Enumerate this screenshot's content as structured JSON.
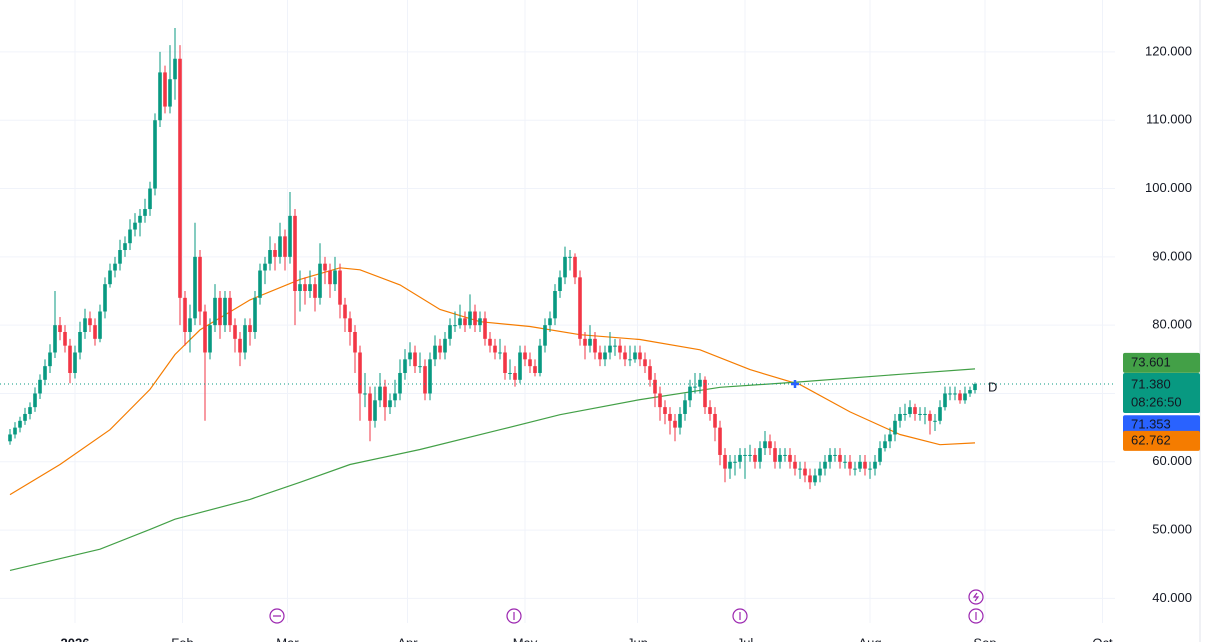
{
  "chart_data": {
    "type": "candlestick",
    "xlim": [
      -2,
      221
    ],
    "xticks": [
      {
        "value": 13,
        "label": "2026"
      },
      {
        "value": 34.5,
        "label": "Feb"
      },
      {
        "value": 55.5,
        "label": "Mar"
      },
      {
        "value": 79.5,
        "label": "Apr"
      },
      {
        "value": 103,
        "label": "May"
      },
      {
        "value": 125.5,
        "label": "Jun"
      },
      {
        "value": 147,
        "label": "Jul"
      },
      {
        "value": 172,
        "label": "Aug"
      },
      {
        "value": 195,
        "label": "Sep"
      },
      {
        "value": 218.5,
        "label": "Oct"
      }
    ],
    "ylim": [
      36.4,
      127.6
    ],
    "yticks": [
      {
        "value": 40,
        "label": "40.000"
      },
      {
        "value": 50,
        "label": "50.000"
      },
      {
        "value": 60,
        "label": "60.000"
      },
      {
        "value": 70,
        "label": "70.000"
      },
      {
        "value": 80,
        "label": "80.000"
      },
      {
        "value": 90,
        "label": "90.000"
      },
      {
        "value": 100,
        "label": "100.000"
      },
      {
        "value": 110,
        "label": "110.000"
      },
      {
        "value": 120,
        "label": "120.000"
      }
    ],
    "grid": true,
    "up_color": "#089981",
    "down_color": "#f23645",
    "ohlc": [
      [
        63,
        64.8,
        62.5,
        64
      ],
      [
        64,
        65.8,
        63.4,
        65
      ],
      [
        65,
        66.6,
        64.3,
        66
      ],
      [
        66,
        67.9,
        65.4,
        67
      ],
      [
        67,
        68.7,
        66.2,
        68
      ],
      [
        68,
        70.9,
        67.3,
        70
      ],
      [
        70,
        72.8,
        69.2,
        72
      ],
      [
        72,
        75,
        71.2,
        74
      ],
      [
        74,
        77.2,
        73,
        76
      ],
      [
        76,
        85,
        75.2,
        80
      ],
      [
        80,
        81.2,
        77.8,
        79
      ],
      [
        79,
        80,
        76,
        77
      ],
      [
        77,
        78,
        71.5,
        73
      ],
      [
        73,
        77,
        72.2,
        76
      ],
      [
        76,
        80.5,
        75,
        79
      ],
      [
        79,
        82.4,
        78,
        81
      ],
      [
        81,
        82,
        79,
        80
      ],
      [
        80,
        81,
        77,
        78
      ],
      [
        78,
        83,
        77.5,
        82
      ],
      [
        82,
        87,
        81,
        86
      ],
      [
        86,
        89,
        85.5,
        88
      ],
      [
        88,
        90,
        87,
        89
      ],
      [
        89,
        92.5,
        88,
        91
      ],
      [
        91,
        93,
        90,
        92
      ],
      [
        92,
        95.5,
        91,
        94
      ],
      [
        94,
        96.4,
        93,
        95
      ],
      [
        95,
        97,
        93,
        96
      ],
      [
        96,
        98.5,
        95,
        97
      ],
      [
        97,
        101,
        96,
        100
      ],
      [
        100,
        111,
        99,
        110
      ],
      [
        110,
        120,
        109,
        117
      ],
      [
        117,
        118,
        111,
        112
      ],
      [
        112,
        121,
        111,
        116
      ],
      [
        116,
        123.5,
        113,
        119
      ],
      [
        119,
        121,
        80,
        84
      ],
      [
        84,
        85,
        77,
        79
      ],
      [
        79,
        83,
        76,
        81
      ],
      [
        81,
        95,
        80,
        90
      ],
      [
        90,
        91,
        80,
        82
      ],
      [
        82,
        83,
        66,
        76
      ],
      [
        76,
        81,
        75,
        80
      ],
      [
        80,
        86,
        79,
        84
      ],
      [
        84,
        85,
        78,
        80
      ],
      [
        80,
        85,
        79,
        84
      ],
      [
        84,
        85,
        79,
        80
      ],
      [
        80,
        81,
        76,
        78
      ],
      [
        78,
        79,
        74,
        76
      ],
      [
        76,
        81,
        75,
        80
      ],
      [
        80,
        81,
        77,
        79
      ],
      [
        79,
        85,
        78,
        84
      ],
      [
        84,
        89,
        83,
        88
      ],
      [
        88,
        90,
        86,
        89
      ],
      [
        89,
        93,
        88,
        91
      ],
      [
        91,
        92,
        88,
        90
      ],
      [
        90,
        95,
        89,
        93
      ],
      [
        93,
        94,
        88,
        90
      ],
      [
        90,
        99.5,
        89,
        96
      ],
      [
        96,
        97,
        80,
        85
      ],
      [
        85,
        88,
        82,
        86
      ],
      [
        86,
        87,
        83,
        85
      ],
      [
        85,
        88,
        84,
        86
      ],
      [
        86,
        87,
        82,
        84
      ],
      [
        84,
        92,
        83,
        89
      ],
      [
        89,
        90,
        86,
        88
      ],
      [
        88,
        89,
        84,
        86
      ],
      [
        86,
        90,
        85,
        88
      ],
      [
        88,
        89,
        81,
        83
      ],
      [
        83,
        84,
        79,
        81
      ],
      [
        81,
        82,
        77,
        79
      ],
      [
        79,
        80,
        73,
        76
      ],
      [
        76,
        77,
        66,
        70
      ],
      [
        70,
        73,
        68,
        70
      ],
      [
        70,
        71,
        63,
        66
      ],
      [
        66,
        71,
        65,
        69
      ],
      [
        69,
        73,
        68,
        71
      ],
      [
        71,
        72,
        66,
        68
      ],
      [
        68,
        70,
        67,
        69
      ],
      [
        69,
        72,
        68,
        70
      ],
      [
        70,
        75,
        69,
        73
      ],
      [
        73,
        76.5,
        72,
        75
      ],
      [
        75,
        77.5,
        74,
        76
      ],
      [
        76,
        77,
        73,
        74
      ],
      [
        74,
        76,
        73,
        74
      ],
      [
        74,
        75,
        69,
        70
      ],
      [
        70,
        76,
        69,
        75
      ],
      [
        75,
        78.5,
        74,
        77
      ],
      [
        77,
        78,
        75,
        76
      ],
      [
        76,
        79,
        75,
        78
      ],
      [
        78,
        81,
        77,
        80
      ],
      [
        80,
        82,
        79,
        80
      ],
      [
        80,
        83,
        79.5,
        81
      ],
      [
        81,
        82,
        79,
        80
      ],
      [
        80,
        84.5,
        79.5,
        82
      ],
      [
        82,
        83,
        79,
        80
      ],
      [
        80,
        82,
        79,
        81
      ],
      [
        81,
        82,
        77,
        78
      ],
      [
        78,
        79,
        76,
        77
      ],
      [
        77,
        78,
        75,
        76
      ],
      [
        76,
        78,
        75,
        76
      ],
      [
        76,
        77,
        72,
        73
      ],
      [
        73,
        75,
        72,
        73
      ],
      [
        73,
        74,
        71,
        72
      ],
      [
        72,
        77,
        71.5,
        76
      ],
      [
        76,
        77,
        74,
        75
      ],
      [
        75,
        76,
        73,
        74
      ],
      [
        74,
        75,
        72.5,
        73
      ],
      [
        73,
        78,
        72.5,
        77
      ],
      [
        77,
        81,
        76,
        80
      ],
      [
        80,
        82,
        79,
        81
      ],
      [
        81,
        86,
        80,
        85
      ],
      [
        85,
        88,
        84,
        87
      ],
      [
        87,
        91.5,
        86,
        90
      ],
      [
        90,
        91,
        88,
        90
      ],
      [
        90,
        90.5,
        86,
        87
      ],
      [
        87,
        88,
        77,
        78
      ],
      [
        78,
        79,
        75,
        77
      ],
      [
        77,
        80,
        76,
        78
      ],
      [
        78,
        79,
        75,
        76
      ],
      [
        76,
        77,
        74,
        75
      ],
      [
        75,
        77,
        74,
        76
      ],
      [
        76,
        79,
        75,
        77
      ],
      [
        77,
        78,
        75.5,
        77
      ],
      [
        77,
        78,
        75,
        76
      ],
      [
        76,
        77,
        74,
        75
      ],
      [
        75,
        77,
        74,
        75
      ],
      [
        75,
        77,
        74.5,
        76
      ],
      [
        76,
        77,
        74,
        75
      ],
      [
        75,
        76,
        73,
        74
      ],
      [
        74,
        75,
        71,
        72
      ],
      [
        72,
        73,
        68,
        70
      ],
      [
        70,
        71,
        66,
        68
      ],
      [
        68,
        69,
        65.5,
        67
      ],
      [
        67,
        68,
        64,
        66
      ],
      [
        66,
        67,
        63,
        65
      ],
      [
        65,
        68,
        64,
        67
      ],
      [
        67,
        70,
        66,
        69
      ],
      [
        69,
        72,
        68,
        71
      ],
      [
        71,
        73,
        70,
        71
      ],
      [
        71,
        73,
        70,
        72
      ],
      [
        72,
        72.5,
        67,
        68
      ],
      [
        68,
        69,
        66,
        67
      ],
      [
        67,
        68,
        63,
        65
      ],
      [
        65,
        66,
        59.5,
        61
      ],
      [
        61,
        62,
        57,
        59
      ],
      [
        59,
        61,
        57.5,
        60
      ],
      [
        60,
        61,
        58,
        60
      ],
      [
        60,
        62,
        59,
        61
      ],
      [
        61,
        62,
        57.5,
        61
      ],
      [
        61,
        62.5,
        60,
        61
      ],
      [
        61,
        62,
        59,
        60
      ],
      [
        60,
        63,
        59,
        62
      ],
      [
        62,
        64.5,
        61,
        63
      ],
      [
        63,
        64,
        61,
        62
      ],
      [
        62,
        63,
        59,
        60
      ],
      [
        60,
        62,
        59,
        61
      ],
      [
        61,
        62,
        60,
        61
      ],
      [
        61,
        62,
        59,
        60
      ],
      [
        60,
        61,
        58,
        59
      ],
      [
        59,
        60,
        57.5,
        59
      ],
      [
        59,
        60,
        57,
        58
      ],
      [
        58,
        59,
        56,
        57
      ],
      [
        57,
        59,
        56.5,
        58
      ],
      [
        58,
        60,
        57,
        59
      ],
      [
        59,
        61,
        58,
        60
      ],
      [
        60,
        62,
        59,
        61
      ],
      [
        61,
        62,
        60,
        61
      ],
      [
        61,
        62,
        59,
        60
      ],
      [
        60,
        61,
        59,
        60
      ],
      [
        60,
        61,
        58,
        59
      ],
      [
        59,
        60,
        58,
        59
      ],
      [
        59,
        61,
        58.5,
        60
      ],
      [
        60,
        61,
        58,
        59
      ],
      [
        59,
        60,
        57.5,
        59
      ],
      [
        59,
        61,
        58,
        60
      ],
      [
        60,
        63,
        59.5,
        62
      ],
      [
        62,
        64,
        61.5,
        63
      ],
      [
        63,
        65,
        62,
        64
      ],
      [
        64,
        67,
        63,
        66
      ],
      [
        66,
        68,
        65,
        67
      ],
      [
        67,
        68.5,
        66,
        67
      ],
      [
        67,
        69,
        66.5,
        68
      ],
      [
        68,
        68.5,
        66,
        67
      ],
      [
        67,
        68,
        66,
        67
      ],
      [
        67,
        68,
        65.5,
        67
      ],
      [
        67,
        67.5,
        64,
        66
      ],
      [
        66,
        67,
        64.5,
        66
      ],
      [
        66,
        69,
        65.5,
        68
      ],
      [
        68,
        71,
        67.5,
        70
      ],
      [
        70,
        71,
        69,
        70
      ],
      [
        70,
        71,
        69,
        70
      ],
      [
        70,
        70.5,
        68.5,
        69
      ],
      [
        69,
        71,
        68.5,
        70
      ],
      [
        70,
        71,
        69.5,
        70.5
      ],
      [
        70.5,
        71.6,
        70,
        71.38
      ]
    ],
    "last_price": {
      "value": 71.38,
      "label": "71.380",
      "color": "#089981"
    },
    "countdown": "08:26:50",
    "bid_price": {
      "value": 71.353,
      "label": "71.353",
      "color": "#2962ff"
    },
    "interval_marker": "D",
    "lines": [
      {
        "color": "#f57c00",
        "x": [
          0,
          10,
          20,
          28,
          33,
          38,
          48,
          58,
          66,
          70,
          78,
          86,
          94,
          104,
          114,
          126,
          138,
          148,
          158,
          168,
          178,
          186,
          193
        ],
        "values": [
          55.2,
          59.6,
          64.7,
          70.6,
          75.7,
          79.3,
          83.7,
          86.7,
          88.4,
          88.1,
          85.9,
          82.3,
          80.5,
          79.8,
          78.6,
          77.9,
          76.4,
          73.5,
          71.3,
          67.3,
          64.0,
          62.5,
          62.762
        ],
        "last_label": "62.762"
      },
      {
        "color": "#43a047",
        "x": [
          0,
          18,
          28,
          33,
          48,
          58,
          68,
          82,
          98,
          110,
          126,
          142,
          158,
          178,
          193
        ],
        "values": [
          44.1,
          47.2,
          50.1,
          51.6,
          54.5,
          57.0,
          59.6,
          61.8,
          64.7,
          66.9,
          69.1,
          70.9,
          71.7,
          72.8,
          73.601
        ],
        "last_label": "73.601"
      }
    ]
  }
}
